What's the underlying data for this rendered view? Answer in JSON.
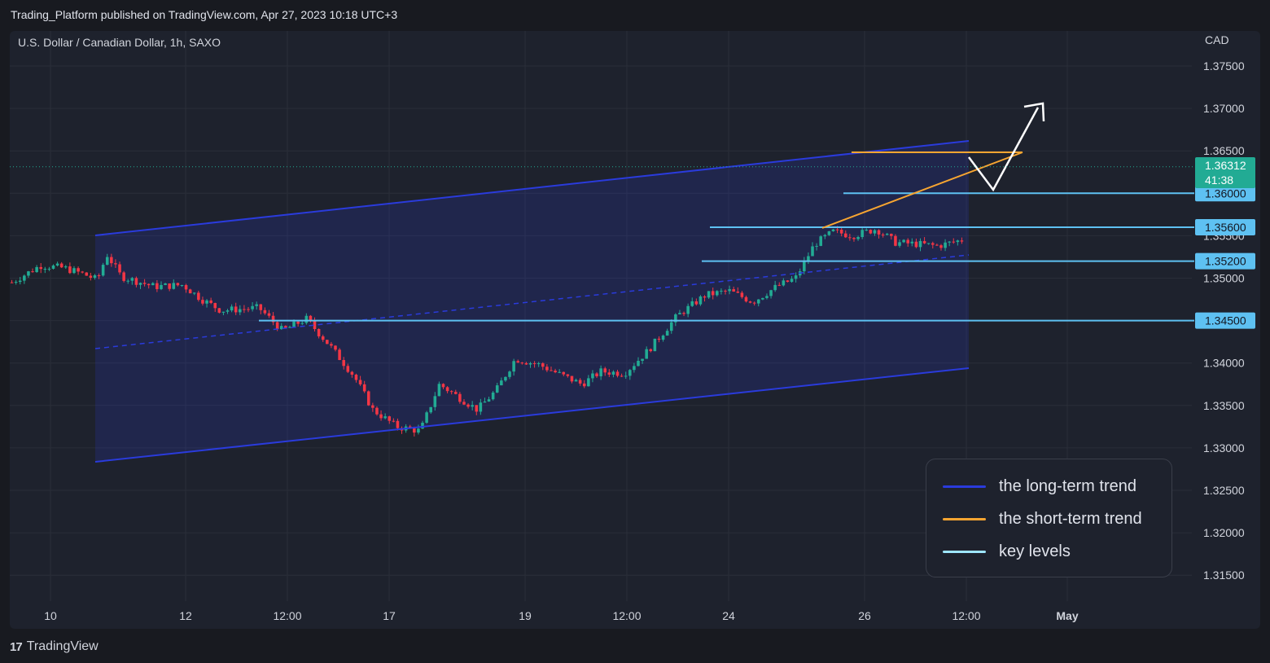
{
  "publisher_line": "Trading_Platform published on TradingView.com, Apr 27, 2023 10:18 UTC+3",
  "symbol_line": "U.S. Dollar / Canadian Dollar, 1h, SAXO",
  "currency": "CAD",
  "footer": {
    "mark": "17",
    "brand": "TradingView"
  },
  "legend": [
    {
      "label": "the long-term trend",
      "color": "#2a3bdc"
    },
    {
      "label": "the short-term trend",
      "color": "#f7a531"
    },
    {
      "label": "key levels",
      "color": "#9ee6ff"
    }
  ],
  "price_badge": {
    "price": "1.36312",
    "countdown": "41:38",
    "color": "#22ab94"
  },
  "chart_data": {
    "type": "candlestick",
    "ylim": [
      1.3115,
      1.3787
    ],
    "y_ticks": [
      "1.37500",
      "1.37000",
      "1.36500",
      "1.36000",
      "1.35500",
      "1.35000",
      "1.34500",
      "1.34000",
      "1.33500",
      "1.33000",
      "1.32500",
      "1.32000",
      "1.31500"
    ],
    "x_ticks": [
      "10",
      "12",
      "12:00",
      "17",
      "19",
      "12:00",
      "24",
      "26",
      "12:00",
      "May"
    ],
    "colors": {
      "up": "#22ab94",
      "down": "#f23645",
      "channel": "#2a3bdc",
      "short_trend": "#f7a531",
      "key_level": "#5ec1f2",
      "arrow": "#ffffff"
    },
    "key_levels": [
      {
        "value": 1.36,
        "label": "1.36000"
      },
      {
        "value": 1.356,
        "label": "1.35600"
      },
      {
        "value": 1.352,
        "label": "1.35200"
      },
      {
        "value": 1.345,
        "label": "1.34500"
      }
    ],
    "price_path": [
      [
        0,
        1.3495
      ],
      [
        0.03,
        1.3515
      ],
      [
        0.055,
        1.3512
      ],
      [
        0.075,
        1.3505
      ],
      [
        0.09,
        1.3498
      ],
      [
        0.1,
        1.3528
      ],
      [
        0.115,
        1.3502
      ],
      [
        0.15,
        1.349
      ],
      [
        0.18,
        1.3492
      ],
      [
        0.2,
        1.3475
      ],
      [
        0.22,
        1.3462
      ],
      [
        0.26,
        1.3465
      ],
      [
        0.285,
        1.3438
      ],
      [
        0.31,
        1.3452
      ],
      [
        0.335,
        1.342
      ],
      [
        0.36,
        1.3385
      ],
      [
        0.38,
        1.3345
      ],
      [
        0.405,
        1.3325
      ],
      [
        0.43,
        1.332
      ],
      [
        0.45,
        1.3375
      ],
      [
        0.47,
        1.336
      ],
      [
        0.49,
        1.3345
      ],
      [
        0.51,
        1.3368
      ],
      [
        0.53,
        1.3405
      ],
      [
        0.555,
        1.3398
      ],
      [
        0.58,
        1.3385
      ],
      [
        0.6,
        1.3375
      ],
      [
        0.62,
        1.339
      ],
      [
        0.645,
        1.3388
      ],
      [
        0.67,
        1.3415
      ],
      [
        0.7,
        1.3455
      ],
      [
        0.73,
        1.348
      ],
      [
        0.755,
        1.3485
      ],
      [
        0.78,
        1.3472
      ],
      [
        0.805,
        1.349
      ],
      [
        0.825,
        1.35
      ],
      [
        0.845,
        1.354
      ],
      [
        0.865,
        1.3555
      ],
      [
        0.885,
        1.355
      ],
      [
        0.91,
        1.3558
      ],
      [
        0.93,
        1.3542
      ],
      [
        0.955,
        1.354
      ],
      [
        0.975,
        1.3538
      ],
      [
        1.0,
        1.3545
      ]
    ]
  }
}
